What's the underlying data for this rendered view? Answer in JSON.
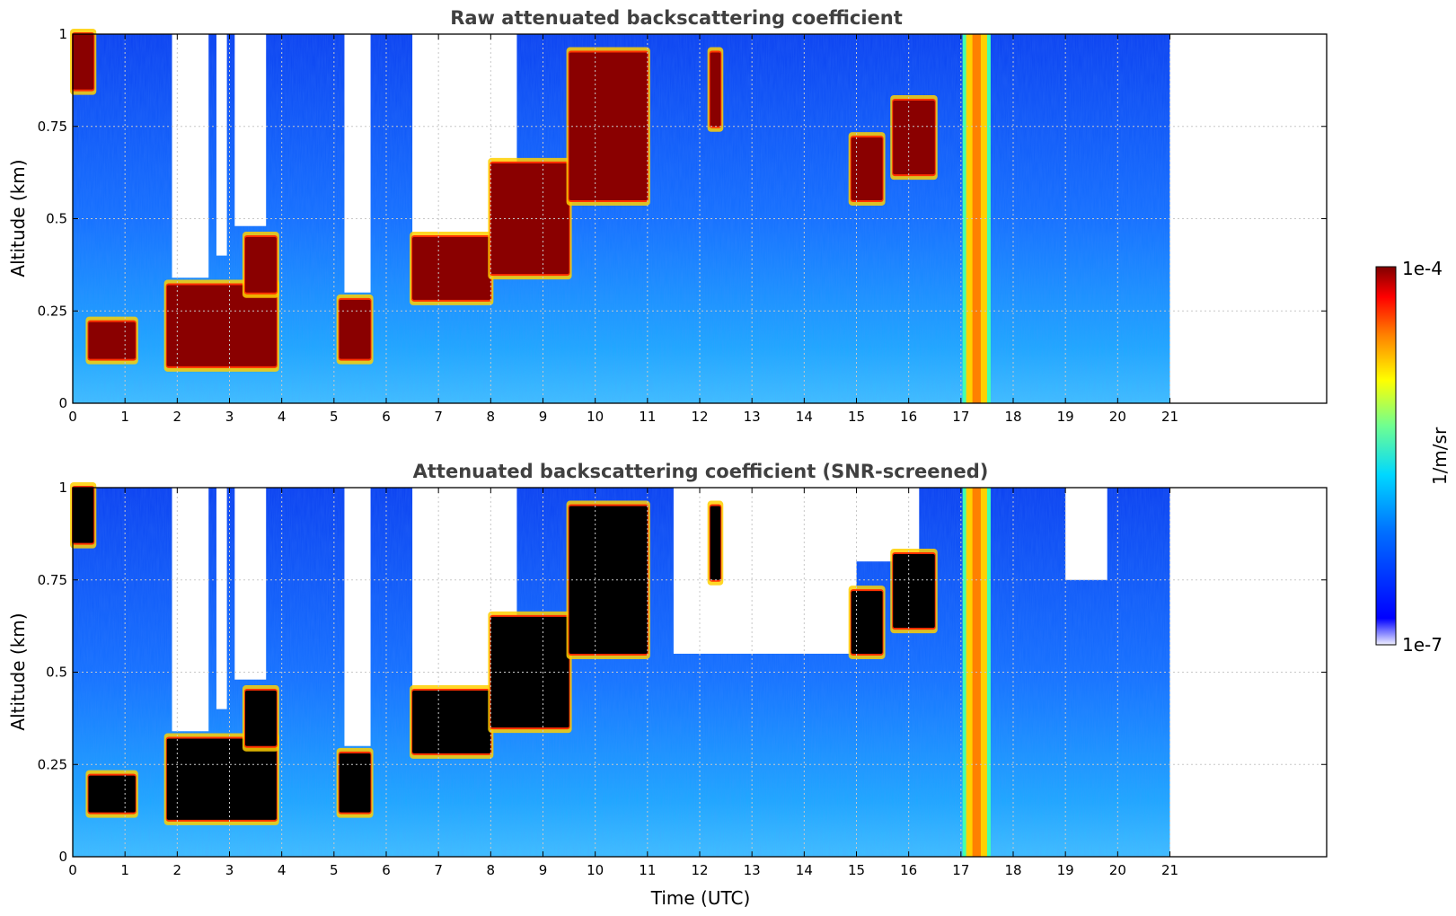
{
  "chart_data": [
    {
      "type": "heatmap",
      "title": "Raw attenuated backscattering coefficient",
      "xlabel": "",
      "ylabel": "Altitude (km)",
      "xlim": [
        0,
        24
      ],
      "ylim": [
        0,
        1
      ],
      "data_extent_x": [
        0,
        21
      ],
      "xticks": [
        "0",
        "1",
        "2",
        "3",
        "4",
        "5",
        "6",
        "7",
        "8",
        "9",
        "10",
        "11",
        "12",
        "13",
        "14",
        "15",
        "16",
        "17",
        "18",
        "19",
        "20",
        "21"
      ],
      "yticks": [
        "0",
        "0.25",
        "0.5",
        "0.75",
        "1"
      ],
      "grid": true,
      "clouds": [
        {
          "t": [
            0.0,
            0.4
          ],
          "base": 0.85,
          "top": 1.0
        },
        {
          "t": [
            0.3,
            1.2
          ],
          "base": 0.12,
          "top": 0.22
        },
        {
          "t": [
            1.8,
            3.9
          ],
          "base": 0.1,
          "top": 0.32
        },
        {
          "t": [
            3.3,
            3.9
          ],
          "base": 0.3,
          "top": 0.45
        },
        {
          "t": [
            5.1,
            5.7
          ],
          "base": 0.12,
          "top": 0.28
        },
        {
          "t": [
            6.5,
            8.0
          ],
          "base": 0.28,
          "top": 0.45
        },
        {
          "t": [
            8.0,
            9.5
          ],
          "base": 0.35,
          "top": 0.65
        },
        {
          "t": [
            9.5,
            11.0
          ],
          "base": 0.55,
          "top": 0.95
        },
        {
          "t": [
            12.2,
            12.4
          ],
          "base": 0.75,
          "top": 0.95
        },
        {
          "t": [
            14.9,
            15.5
          ],
          "base": 0.55,
          "top": 0.72
        },
        {
          "t": [
            15.7,
            16.5
          ],
          "base": 0.62,
          "top": 0.82
        }
      ],
      "signal_gaps": [
        {
          "t": [
            1.9,
            2.6
          ],
          "base": 0.34,
          "top": 1.0
        },
        {
          "t": [
            2.75,
            2.95
          ],
          "base": 0.4,
          "top": 1.0
        },
        {
          "t": [
            3.1,
            3.7
          ],
          "base": 0.48,
          "top": 1.0
        },
        {
          "t": [
            5.2,
            5.7
          ],
          "base": 0.3,
          "top": 1.0
        },
        {
          "t": [
            6.5,
            8.5
          ],
          "base": 0.45,
          "top": 1.0
        }
      ],
      "precipitation_column": {
        "t": [
          17.1,
          17.5
        ],
        "base": 0.0,
        "top": 1.0
      }
    },
    {
      "type": "heatmap",
      "title": "Attenuated backscattering coefficient (SNR-screened)",
      "xlabel": "Time (UTC)",
      "ylabel": "Altitude (km)",
      "xlim": [
        0,
        24
      ],
      "ylim": [
        0,
        1
      ],
      "data_extent_x": [
        0,
        21
      ],
      "xticks": [
        "0",
        "1",
        "2",
        "3",
        "4",
        "5",
        "6",
        "7",
        "8",
        "9",
        "10",
        "11",
        "12",
        "13",
        "14",
        "15",
        "16",
        "17",
        "18",
        "19",
        "20",
        "21"
      ],
      "yticks": [
        "0",
        "0.25",
        "0.5",
        "0.75",
        "1"
      ],
      "grid": true,
      "saturated_color": "#000000",
      "screened_regions": [
        {
          "t": [
            11.5,
            15.0
          ],
          "base": 0.55,
          "top": 1.0
        },
        {
          "t": [
            15.0,
            16.2
          ],
          "base": 0.8,
          "top": 1.0
        },
        {
          "t": [
            19.0,
            19.8
          ],
          "base": 0.75,
          "top": 1.0
        }
      ]
    }
  ],
  "colorbar": {
    "label": "1/m/sr",
    "max_label": "1e-4",
    "min_label": "1e-7",
    "scale": "log",
    "range": [
      1e-07,
      0.0001
    ],
    "colormap": [
      "#f0f0ff",
      "#0000ff",
      "#0080ff",
      "#00e0ff",
      "#80ff80",
      "#ffff00",
      "#ff8000",
      "#ff0000",
      "#800000"
    ]
  }
}
